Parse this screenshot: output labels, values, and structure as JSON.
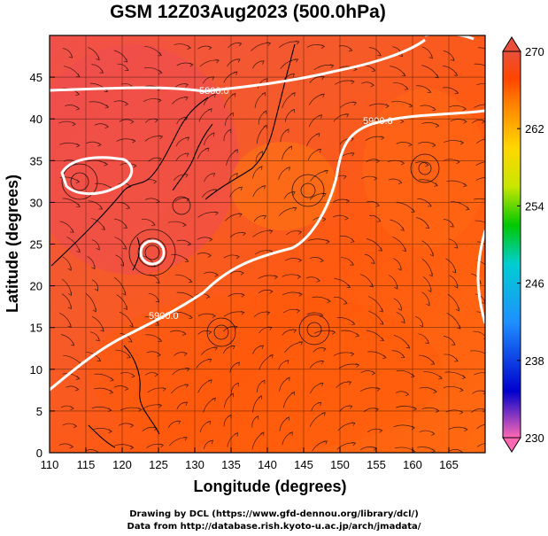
{
  "title": "GSM 12Z03Aug2023 (500.0hPa)",
  "axes": {
    "xlabel": "Longitude (degrees)",
    "ylabel": "Latitude  (degrees)",
    "xticks": [
      "110",
      "115",
      "120",
      "125",
      "130",
      "135",
      "140",
      "145",
      "150",
      "155",
      "160",
      "165"
    ],
    "yticks": [
      "0",
      "5",
      "10",
      "15",
      "20",
      "25",
      "30",
      "35",
      "40",
      "45"
    ]
  },
  "contour_labels": [
    "5800.0",
    "5900.0",
    "5900.0"
  ],
  "colorbar": {
    "ticks": [
      "270",
      "262",
      "254",
      "246",
      "238",
      "230"
    ],
    "colors": [
      "#ff69b4",
      "#0000cd",
      "#1e90ff",
      "#00ced1",
      "#00c800",
      "#c8e600",
      "#ffd700",
      "#ff8c00",
      "#ff4500",
      "#e8503c"
    ]
  },
  "footer": {
    "line1": "Drawing by DCL (https://www.gfd-dennou.org/library/dcl/)",
    "line2": "Data from http://database.rish.kyoto-u.ac.jp/arch/jmadata/"
  },
  "chart_data": {
    "type": "heatmap",
    "title": "GSM 12Z03Aug2023 (500.0hPa)",
    "xlabel": "Longitude (degrees)",
    "ylabel": "Latitude  (degrees)",
    "xlim": [
      110,
      170
    ],
    "ylim": [
      0,
      50
    ],
    "colorbar_range": [
      230,
      270
    ],
    "contour_levels": [
      5800.0,
      5900.0
    ],
    "grid": true
  }
}
